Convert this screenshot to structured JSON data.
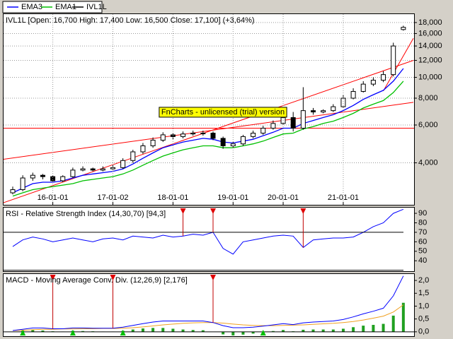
{
  "chart_data": [
    {
      "type": "candlestick",
      "title": "IVL1L [Open: 16,700  High: 17,400  Low: 16,500  Close: 17,100] (+3,64%)",
      "watermark": "FnCharts - unlicensed (trial) version",
      "candle_name": "IVL1L",
      "categories": [
        null,
        null,
        null,
        null,
        "16-01-01",
        null,
        null,
        null,
        null,
        null,
        "17-01-02",
        null,
        null,
        null,
        null,
        null,
        "18-01-01",
        null,
        null,
        null,
        null,
        null,
        "19-01-01",
        null,
        null,
        null,
        null,
        "20-01-01",
        null,
        null,
        null,
        null,
        null,
        "21-01-01",
        null,
        null,
        null,
        null,
        null,
        null
      ],
      "open": [
        2900,
        3000,
        3400,
        3500,
        3450,
        3300,
        3450,
        3700,
        3750,
        3700,
        3750,
        3800,
        4100,
        4500,
        4800,
        5100,
        5400,
        5300,
        5450,
        5500,
        5500,
        5200,
        4800,
        4900,
        5300,
        5500,
        5800,
        6100,
        6500,
        5800,
        7000,
        6900,
        7000,
        7300,
        8000,
        8600,
        9300,
        9700,
        10300,
        16700
      ],
      "high": [
        3100,
        3500,
        3600,
        3550,
        3500,
        3500,
        3800,
        3850,
        3800,
        3850,
        3900,
        4200,
        4600,
        4950,
        5250,
        5550,
        5500,
        5600,
        5650,
        5650,
        5600,
        5300,
        5000,
        5400,
        5650,
        5950,
        6300,
        6800,
        6900,
        9000,
        7200,
        7100,
        7500,
        8300,
        8900,
        9600,
        10000,
        10700,
        14500,
        17400
      ],
      "low": [
        2850,
        2950,
        3300,
        3350,
        3250,
        3250,
        3400,
        3650,
        3650,
        3650,
        3700,
        3750,
        4000,
        4400,
        4700,
        5000,
        5150,
        5200,
        5350,
        5350,
        5100,
        4650,
        4700,
        4800,
        5200,
        5400,
        5700,
        6000,
        5600,
        5700,
        6700,
        6800,
        6900,
        7200,
        7900,
        8500,
        9100,
        9500,
        10100,
        16500
      ],
      "close": [
        3000,
        3400,
        3500,
        3450,
        3300,
        3450,
        3700,
        3750,
        3700,
        3750,
        3800,
        4100,
        4500,
        4800,
        5100,
        5400,
        5300,
        5450,
        5500,
        5500,
        5200,
        4800,
        4900,
        5300,
        5500,
        5800,
        6100,
        6500,
        5800,
        7000,
        6900,
        7000,
        7300,
        8000,
        8600,
        9300,
        9700,
        10300,
        14000,
        17100
      ],
      "series": [
        {
          "name": "EMA3",
          "color": "#0000ff",
          "values": [
            2900,
            3050,
            3200,
            3250,
            3250,
            3300,
            3400,
            3500,
            3550,
            3600,
            3650,
            3750,
            3950,
            4200,
            4450,
            4700,
            4850,
            5000,
            5100,
            5200,
            5150,
            5000,
            4950,
            5050,
            5150,
            5350,
            5550,
            5800,
            5800,
            6100,
            6300,
            6500,
            6700,
            7000,
            7400,
            7900,
            8300,
            8700,
            9600,
            11000
          ]
        },
        {
          "name": "EMA1",
          "color": "#00c000",
          "values": [
            2800,
            2900,
            3000,
            3050,
            3100,
            3150,
            3200,
            3300,
            3350,
            3400,
            3450,
            3550,
            3700,
            3900,
            4100,
            4300,
            4450,
            4600,
            4700,
            4800,
            4800,
            4700,
            4700,
            4800,
            4900,
            5050,
            5250,
            5450,
            5500,
            5750,
            5900,
            6100,
            6250,
            6500,
            6800,
            7200,
            7500,
            7800,
            8500,
            9600
          ]
        }
      ],
      "trend_lines": [
        {
          "color": "#ff0000",
          "x": [
            -1,
            40
          ],
          "values": [
            4150,
            7650
          ]
        },
        {
          "color": "#ff0000",
          "x": [
            -1,
            40
          ],
          "values": [
            2600,
            12000
          ]
        },
        {
          "color": "#ff0000",
          "x": [
            37,
            40
          ],
          "values": [
            8650,
            15200
          ]
        }
      ],
      "hlines": [
        {
          "color": "#ff0000",
          "value": 5800
        }
      ],
      "log_scale": true,
      "grid": true,
      "ylim": [
        2550,
        19700
      ],
      "yticks": [
        {
          "value": 4000,
          "label": "4,000"
        },
        {
          "value": 6000,
          "label": "6,000"
        },
        {
          "value": 8000,
          "label": "8,000"
        },
        {
          "value": 10000,
          "label": "10,000"
        },
        {
          "value": 12000,
          "label": "12,000"
        },
        {
          "value": 14000,
          "label": "14,000"
        },
        {
          "value": 16000,
          "label": "16,000"
        },
        {
          "value": 18000,
          "label": "18,000"
        }
      ]
    },
    {
      "type": "line",
      "title": "RSI - Relative Strength Index (14,30,70) [94,3]",
      "color": "#0000ff",
      "values": [
        55,
        62,
        65,
        63,
        60,
        62,
        64,
        62,
        60,
        63,
        64,
        62,
        66,
        65,
        64,
        67,
        65,
        66,
        68,
        67,
        70,
        53,
        47,
        60,
        62,
        64,
        66,
        67,
        66,
        54,
        62,
        63,
        64,
        64,
        65,
        70,
        76,
        80,
        90,
        94.3
      ],
      "levels": [
        30,
        70
      ],
      "sell_signals": [
        17,
        20,
        29
      ],
      "ylim": [
        29,
        96
      ],
      "yticks": [
        40,
        50,
        60,
        70,
        80,
        90
      ]
    },
    {
      "type": "macd",
      "title": "MACD - Moving Average Conv. Div. (12,26,9) [2,176]",
      "macd": {
        "color": "#0000ff",
        "values": [
          0.05,
          0.1,
          0.15,
          0.15,
          0.12,
          0.12,
          0.15,
          0.15,
          0.14,
          0.14,
          0.14,
          0.18,
          0.25,
          0.32,
          0.38,
          0.42,
          0.42,
          0.42,
          0.42,
          0.42,
          0.36,
          0.24,
          0.16,
          0.16,
          0.18,
          0.22,
          0.27,
          0.32,
          0.28,
          0.35,
          0.38,
          0.4,
          0.42,
          0.48,
          0.58,
          0.7,
          0.8,
          0.92,
          1.4,
          2.176
        ]
      },
      "signal": {
        "color": "#f0a020",
        "values": [
          0.05,
          0.06,
          0.08,
          0.1,
          0.1,
          0.11,
          0.11,
          0.12,
          0.12,
          0.13,
          0.13,
          0.14,
          0.16,
          0.19,
          0.23,
          0.27,
          0.3,
          0.33,
          0.35,
          0.36,
          0.36,
          0.34,
          0.3,
          0.27,
          0.25,
          0.24,
          0.24,
          0.25,
          0.26,
          0.27,
          0.29,
          0.31,
          0.33,
          0.36,
          0.4,
          0.46,
          0.53,
          0.61,
          0.77,
          1.05
        ]
      },
      "histogram": {
        "color": "#20a020",
        "values": [
          0,
          0.04,
          0.07,
          0.05,
          0.02,
          0.01,
          0.04,
          0.03,
          0.02,
          0.01,
          0.01,
          0.04,
          0.09,
          0.13,
          0.15,
          0.15,
          0.12,
          0.09,
          0.07,
          0.06,
          0,
          -0.1,
          -0.14,
          -0.11,
          -0.07,
          -0.02,
          0.03,
          0.07,
          0.02,
          0.08,
          0.09,
          0.09,
          0.09,
          0.12,
          0.18,
          0.24,
          0.27,
          0.31,
          0.63,
          1.13
        ]
      },
      "sell_signals": [
        4,
        10,
        20
      ],
      "buy_signals": [
        1,
        6,
        11,
        25
      ],
      "ylim": [
        -0.17,
        2.25
      ],
      "yticks": [
        {
          "value": 0,
          "label": "0,0"
        },
        {
          "value": 0.5,
          "label": "0,5"
        },
        {
          "value": 1,
          "label": "1,0"
        },
        {
          "value": 1.5,
          "label": "1,5"
        },
        {
          "value": 2,
          "label": "2,0"
        }
      ]
    }
  ]
}
